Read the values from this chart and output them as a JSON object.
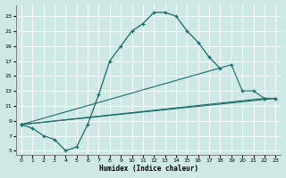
{
  "xlabel": "Humidex (Indice chaleur)",
  "bg_color": "#cde8e5",
  "grid_color": "#ffffff",
  "line_color": "#1a6b6b",
  "xlim": [
    -0.5,
    23.5
  ],
  "ylim": [
    4.5,
    24.5
  ],
  "xticks": [
    0,
    1,
    2,
    3,
    4,
    5,
    6,
    7,
    8,
    9,
    10,
    11,
    12,
    13,
    14,
    15,
    16,
    17,
    18,
    19,
    20,
    21,
    22,
    23
  ],
  "yticks": [
    5,
    7,
    9,
    11,
    13,
    15,
    17,
    19,
    21,
    23
  ],
  "curve1_x": [
    0,
    1,
    2,
    3,
    4,
    5,
    6,
    7,
    8,
    9,
    10,
    11,
    12,
    13,
    14,
    15,
    16,
    17,
    18
  ],
  "curve1_y": [
    8.5,
    8.0,
    7.0,
    6.5,
    5.0,
    5.5,
    8.5,
    12.5,
    17.0,
    19.0,
    21.0,
    22.0,
    23.5,
    23.5,
    23.0,
    21.0,
    19.5,
    17.5,
    16.0
  ],
  "line2_x": [
    0,
    19,
    20,
    21,
    22,
    23
  ],
  "line2_y": [
    8.5,
    16.5,
    13.0,
    13.0,
    12.0,
    12.0
  ],
  "line3_x": [
    0,
    22,
    23
  ],
  "line3_y": [
    8.5,
    12.0,
    12.0
  ],
  "line4_x": [
    0,
    23
  ],
  "line4_y": [
    8.5,
    12.0
  ]
}
